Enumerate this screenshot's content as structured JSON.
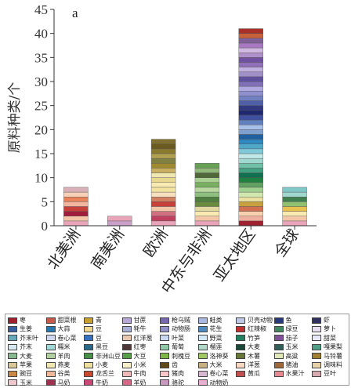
{
  "chart_data": {
    "type": "bar",
    "stacked": true,
    "panel_label": "a",
    "ylabel": "原料种类/个",
    "ylim": [
      0,
      45
    ],
    "yticks": [
      0,
      5,
      10,
      15,
      20,
      25,
      30,
      35,
      40,
      45
    ],
    "categories": [
      "北美洲",
      "南美洲",
      "欧洲",
      "中东与非洲",
      "亚太地区",
      "全球"
    ],
    "values": [
      8,
      2,
      18,
      13,
      41,
      8
    ],
    "segment_colors": [
      [
        "#e8a4b8",
        "#f4c6a8",
        "#a01e3c",
        "#c8403a",
        "#f3b5a0",
        "#e8825a",
        "#f7d0b8",
        "#d9b0b8"
      ],
      [
        "#c8a0c8",
        "#e8a4b8"
      ],
      [
        "#e8a4b8",
        "#c04060",
        "#d07080",
        "#f4c6a8",
        "#c8403a",
        "#d08060",
        "#f7e0c0",
        "#f3e3a0",
        "#f8eab0",
        "#e8d890",
        "#f0e6b0",
        "#c8b060",
        "#a08a30",
        "#808040",
        "#b0a050",
        "#8a7a30",
        "#6b5a20",
        "#807030"
      ],
      [
        "#e8a4b8",
        "#f4c6a8",
        "#f8eab0",
        "#e0d8a0",
        "#6a8a40",
        "#508040",
        "#90c080",
        "#b8d8a0",
        "#78b060",
        "#a8d090",
        "#506838",
        "#90b878",
        "#68a058"
      ],
      [
        "#a02030",
        "#f0b0a0",
        "#f8d0b0",
        "#d07050",
        "#c8a040",
        "#e8e0a0",
        "#d0e8b0",
        "#a0d090",
        "#60a060",
        "#208040",
        "#107050",
        "#40a080",
        "#70c0a8",
        "#a0d8d0",
        "#c0e8e8",
        "#80c8d8",
        "#50a8c8",
        "#3088c0",
        "#2060a0",
        "#80a0d0",
        "#a8c0e8",
        "#6080c0",
        "#4050a0",
        "#202870",
        "#303880",
        "#5060a8",
        "#7080c0",
        "#9090d0",
        "#b0a8e0",
        "#8070b8",
        "#6050a0",
        "#a090c8",
        "#c0b0e0",
        "#9070b8",
        "#7050a0",
        "#b090c8",
        "#d0b8e0",
        "#a878c0",
        "#806098",
        "#c8603a",
        "#a83028"
      ],
      [
        "#e8a4b8",
        "#f4c6a8",
        "#f8eab0",
        "#e8c050",
        "#90c070",
        "#408050",
        "#a0d8d0",
        "#80c8c8"
      ]
    ],
    "legend": [
      {
        "label": "枣",
        "color": "#a02030"
      },
      {
        "label": "甜菜根",
        "color": "#c85848"
      },
      {
        "label": "青",
        "color": "#c8a030"
      },
      {
        "label": "甘蔗",
        "color": "#b8a8d8"
      },
      {
        "label": "枪乌贼",
        "color": "#7868b0"
      },
      {
        "label": "鲑类",
        "color": "#a8b8e0"
      },
      {
        "label": "贝壳动物",
        "color": "#c0c8e8"
      },
      {
        "label": "鱼",
        "color": "#283878"
      },
      {
        "label": "虾",
        "color": "#303060"
      },
      {
        "label": "生姜",
        "color": "#3860a0"
      },
      {
        "label": "大蒜",
        "color": "#2878b0"
      },
      {
        "label": "豆",
        "color": "#f0d890"
      },
      {
        "label": "牦牛",
        "color": "#a8b0d8"
      },
      {
        "label": "动物肠",
        "color": "#9090c8"
      },
      {
        "label": "花生",
        "color": "#5088c0"
      },
      {
        "label": "红辣椒",
        "color": "#c03030"
      },
      {
        "label": "绿豆",
        "color": "#408860"
      },
      {
        "label": "萝卜",
        "color": "#e8e0f0"
      },
      {
        "label": "芥末叶",
        "color": "#68a8b8"
      },
      {
        "label": "卷心菜",
        "color": "#d0d8f0"
      },
      {
        "label": "豆",
        "color": "#3870c0"
      },
      {
        "label": "红洋葱",
        "color": "#e8c8b0"
      },
      {
        "label": "叶菜",
        "color": "#c8d8f0"
      },
      {
        "label": "野菜",
        "color": "#d0e8f8"
      },
      {
        "label": "竹笋",
        "color": "#208060"
      },
      {
        "label": "茄子",
        "color": "#805098"
      },
      {
        "label": "甜菜",
        "color": "#e8e8f8"
      },
      {
        "label": "芥末",
        "color": "#d8e8f0"
      },
      {
        "label": "糯米",
        "color": "#a0d8d8"
      },
      {
        "label": "黑豆",
        "color": "#286888"
      },
      {
        "label": "红枣",
        "color": "#503838"
      },
      {
        "label": "葡萄",
        "color": "#90c8a8"
      },
      {
        "label": "榴莲",
        "color": "#b0d8c8"
      },
      {
        "label": "大麦",
        "color": "#184838"
      },
      {
        "label": "玉米",
        "color": "#306058"
      },
      {
        "label": "嘎果梨",
        "color": "#50a088"
      },
      {
        "label": "大麦",
        "color": "#88b890"
      },
      {
        "label": "羊肉",
        "color": "#b0d0a0"
      },
      {
        "label": "非洲山豆",
        "color": "#489048"
      },
      {
        "label": "大豆",
        "color": "#58a048"
      },
      {
        "label": "刺槐豆",
        "color": "#80b848"
      },
      {
        "label": "洛神葵",
        "color": "#a0c860"
      },
      {
        "label": "木薯",
        "color": "#687838"
      },
      {
        "label": "高粱",
        "color": "#e0e8b8"
      },
      {
        "label": "马铃薯",
        "color": "#a08030"
      },
      {
        "label": "苹果",
        "color": "#d8c898"
      },
      {
        "label": "燕麦",
        "color": "#f0e8b0"
      },
      {
        "label": "小麦",
        "color": "#f0e0a0"
      },
      {
        "label": "小米",
        "color": "#f8f0c8"
      },
      {
        "label": "齿",
        "color": "#604818"
      },
      {
        "label": "大米",
        "color": "#c8b080"
      },
      {
        "label": "洋葱",
        "color": "#f8d8c0"
      },
      {
        "label": "猪油",
        "color": "#a06838"
      },
      {
        "label": "调味料",
        "color": "#e8d0a8"
      },
      {
        "label": "豌豆",
        "color": "#c88848"
      },
      {
        "label": "谷类",
        "color": "#f0b898"
      },
      {
        "label": "龙舌兰",
        "color": "#c84830"
      },
      {
        "label": "牛肉",
        "color": "#f0b8b8"
      },
      {
        "label": "猪肉",
        "color": "#f8c8c8"
      },
      {
        "label": "卷心菜",
        "color": "#d8b8d0"
      },
      {
        "label": "黄瓜",
        "color": "#c05050"
      },
      {
        "label": "水果汁",
        "color": "#e88890"
      },
      {
        "label": "豆叶",
        "color": "#d8a8b0"
      },
      {
        "label": "玉米",
        "color": "#f0c8d0"
      },
      {
        "label": "马奶",
        "color": "#a03050"
      },
      {
        "label": "牛奶",
        "color": "#c84878"
      },
      {
        "label": "羊奶",
        "color": "#d86888"
      },
      {
        "label": "骆驼",
        "color": "#c898c0"
      },
      {
        "label": "动物奶",
        "color": "#e8b0d0"
      }
    ]
  }
}
